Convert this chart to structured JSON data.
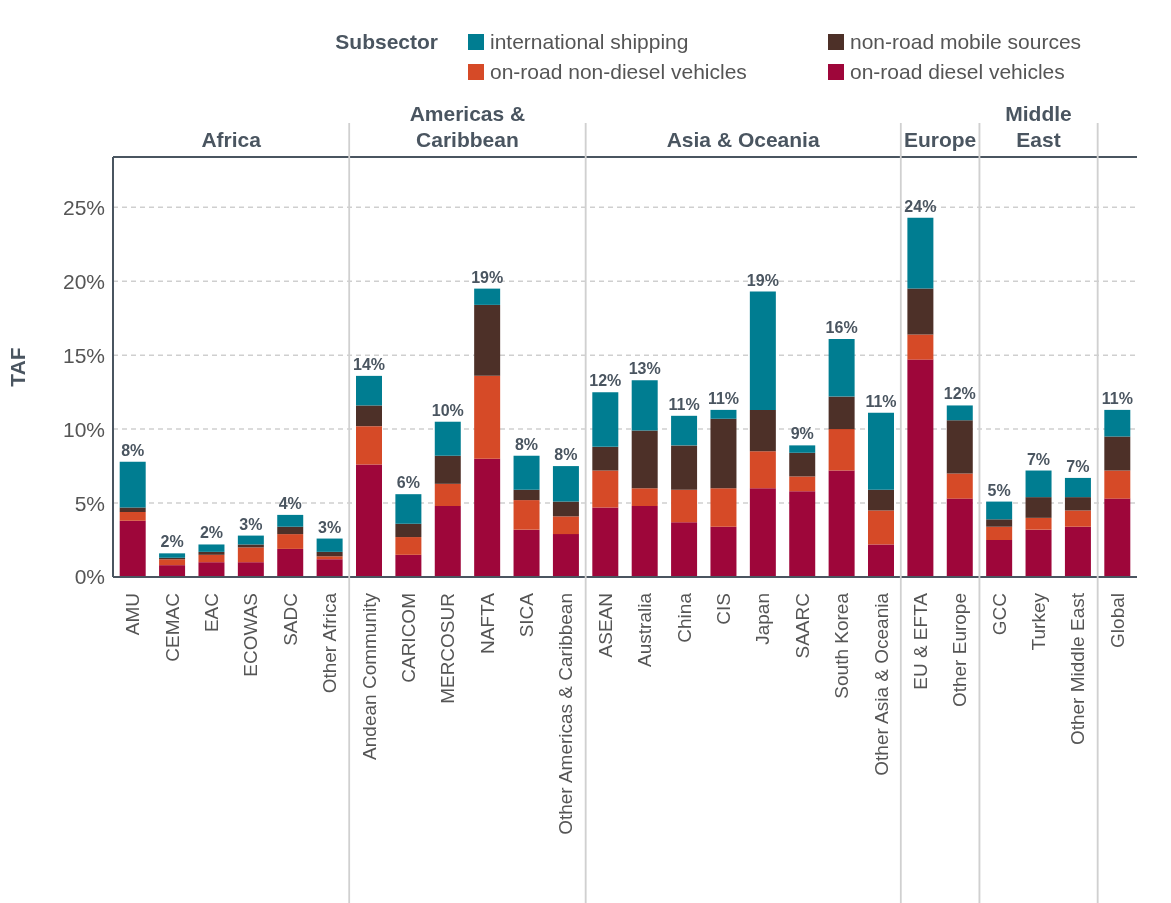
{
  "chart_data": {
    "type": "bar",
    "stacked": true,
    "ylabel": "TAF",
    "legend_title": "Subsector",
    "legend": "top right",
    "grid": "y",
    "categories": [
      "AMU",
      "CEMAC",
      "EAC",
      "ECOWAS",
      "SADC",
      "Other Africa",
      "Andean Community",
      "CARICOM",
      "MERCOSUR",
      "NAFTA",
      "SICA",
      "Other Americas & Caribbean",
      "ASEAN",
      "Australia",
      "China",
      "CIS",
      "Japan",
      "SAARC",
      "South Korea",
      "Other Asia & Oceania",
      "EU & EFTA",
      "Other Europe",
      "GCC",
      "Turkey",
      "Other Middle East",
      "Global"
    ],
    "series": [
      {
        "name": "on-road diesel vehicles",
        "color": "#9e063a",
        "values": [
          3.8,
          0.8,
          1.0,
          1.0,
          1.9,
          1.2,
          7.6,
          1.5,
          4.8,
          8.0,
          3.2,
          2.9,
          4.7,
          4.8,
          3.7,
          3.4,
          6.0,
          5.8,
          7.2,
          2.2,
          14.7,
          5.3,
          2.5,
          3.2,
          3.4,
          5.3
        ]
      },
      {
        "name": "on-road non-diesel vehicles",
        "color": "#d64a27",
        "values": [
          0.6,
          0.4,
          0.5,
          1.0,
          1.0,
          0.2,
          2.6,
          1.2,
          1.5,
          5.6,
          2.0,
          1.2,
          2.5,
          1.2,
          2.2,
          2.6,
          2.5,
          1.0,
          2.8,
          2.3,
          1.7,
          1.7,
          0.9,
          0.8,
          1.1,
          1.9
        ]
      },
      {
        "name": "non-road mobile sources",
        "color": "#4d3028",
        "values": [
          0.3,
          0.1,
          0.2,
          0.2,
          0.5,
          0.3,
          1.4,
          0.9,
          1.9,
          4.8,
          0.7,
          1.0,
          1.6,
          3.9,
          3.0,
          4.7,
          2.8,
          1.6,
          2.2,
          1.4,
          3.1,
          3.6,
          0.5,
          1.4,
          0.9,
          2.3
        ]
      },
      {
        "name": "international shipping",
        "color": "#007d91",
        "values": [
          3.1,
          0.3,
          0.5,
          0.6,
          0.8,
          0.9,
          2.0,
          2.0,
          2.3,
          1.1,
          2.3,
          2.4,
          3.7,
          3.4,
          2.0,
          0.6,
          8.0,
          0.5,
          3.9,
          5.2,
          4.8,
          1.0,
          1.2,
          1.8,
          1.3,
          1.8
        ]
      }
    ],
    "totals": [
      "8%",
      "2%",
      "2%",
      "3%",
      "4%",
      "3%",
      "14%",
      "6%",
      "10%",
      "19%",
      "8%",
      "8%",
      "12%",
      "13%",
      "11%",
      "11%",
      "19%",
      "9%",
      "16%",
      "11%",
      "24%",
      "12%",
      "5%",
      "7%",
      "7%",
      "11%"
    ],
    "ylim": [
      0,
      28.4
    ],
    "yticks": [
      {
        "value": 0,
        "label": "0%"
      },
      {
        "value": 5,
        "label": "5%"
      },
      {
        "value": 10,
        "label": "10%"
      },
      {
        "value": 15,
        "label": "15%"
      },
      {
        "value": 20,
        "label": "20%"
      },
      {
        "value": 25,
        "label": "25%"
      }
    ],
    "annotations": [
      "Africa",
      "Americas & Caribbean",
      "Asia & Oceania",
      "Europe",
      "Middle East"
    ]
  }
}
